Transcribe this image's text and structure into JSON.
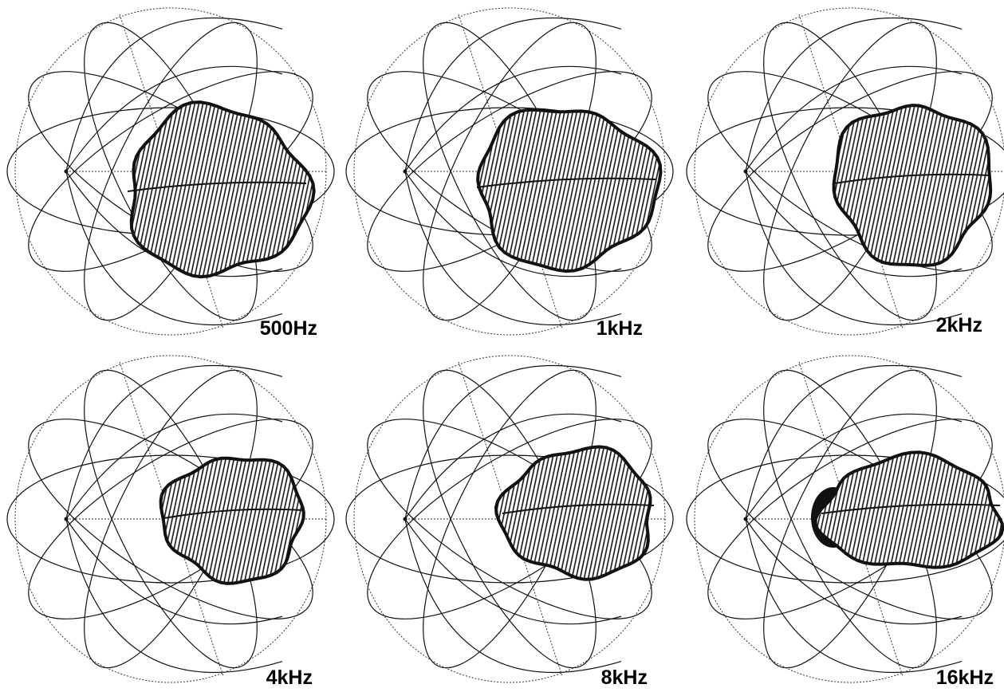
{
  "panels": [
    {
      "label": "500Hz"
    },
    {
      "label": "1kHz"
    },
    {
      "label": "2kHz"
    },
    {
      "label": "4kHz"
    },
    {
      "label": "8kHz"
    },
    {
      "label": "16kHz"
    }
  ]
}
